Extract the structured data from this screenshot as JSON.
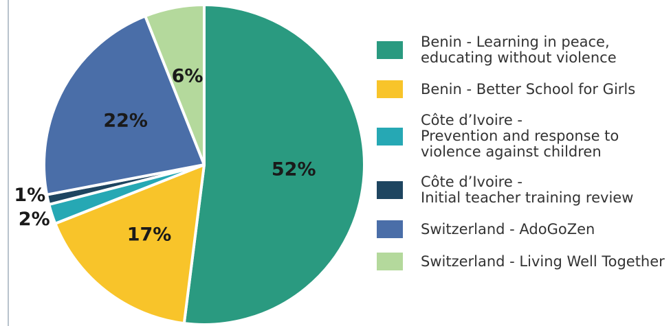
{
  "chart_data": {
    "type": "pie",
    "series": [
      {
        "name": "Benin - Learning in peace,\neducating without violence",
        "color": "#2a9a80",
        "values": [
          52
        ],
        "value_labels": [
          "52%"
        ]
      },
      {
        "name": "Benin - Better School for Girls",
        "color": "#f8c42a",
        "values": [
          17
        ],
        "value_labels": [
          "17%"
        ]
      },
      {
        "name": "Côte d’Ivoire -\nPrevention and response to\nviolence against children",
        "color": "#26a8b4",
        "values": [
          2
        ],
        "value_labels": [
          "2%"
        ]
      },
      {
        "name": "Côte d’Ivoire -\nInitial teacher training review",
        "color": "#1e4560",
        "values": [
          1
        ],
        "value_labels": [
          "1%"
        ]
      },
      {
        "name": "Switzerland - AdoGoZen",
        "color": "#4a6ea8",
        "values": [
          22
        ],
        "value_labels": [
          "22%"
        ]
      },
      {
        "name": "Switzerland - Living Well Together",
        "color": "#b4d99c",
        "values": [
          6
        ],
        "value_labels": [
          "6%"
        ]
      }
    ],
    "legend": "right"
  }
}
